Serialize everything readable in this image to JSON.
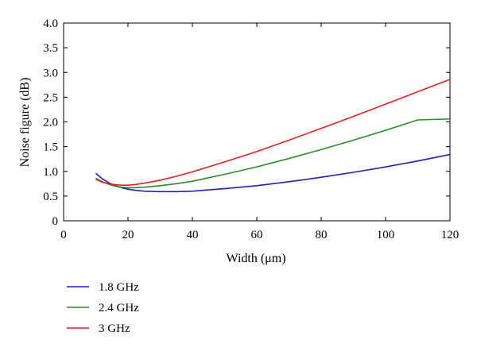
{
  "chart_data": {
    "type": "line",
    "xlabel": "Width (μm)",
    "ylabel": "Noise figure (dB)",
    "xlim": [
      0,
      120
    ],
    "ylim": [
      0,
      4.0
    ],
    "xticks": [
      "0",
      "20",
      "40",
      "60",
      "80",
      "100",
      "120"
    ],
    "yticks": [
      "0",
      "0.5",
      "1.0",
      "1.5",
      "2.0",
      "2.5",
      "3.0",
      "3.5",
      "4.0"
    ],
    "grid": false,
    "legend_position": "below",
    "x": [
      10,
      12,
      14,
      16,
      18,
      20,
      22,
      25,
      30,
      35,
      40,
      50,
      60,
      70,
      80,
      90,
      100,
      110,
      120
    ],
    "series": [
      {
        "name": "1.8 GHz",
        "color": "#1f1fbf",
        "values": [
          0.96,
          0.85,
          0.77,
          0.71,
          0.67,
          0.64,
          0.62,
          0.6,
          0.59,
          0.59,
          0.6,
          0.65,
          0.71,
          0.79,
          0.88,
          0.98,
          1.09,
          1.21,
          1.34
        ]
      },
      {
        "name": "2.4 GHz",
        "color": "#2a8a2a",
        "values": [
          0.86,
          0.79,
          0.74,
          0.7,
          0.68,
          0.67,
          0.67,
          0.68,
          0.71,
          0.75,
          0.8,
          0.94,
          1.09,
          1.26,
          1.44,
          1.63,
          1.83,
          2.04,
          2.06
        ]
      },
      {
        "name": "3 GHz",
        "color": "#e02020",
        "values": [
          0.84,
          0.78,
          0.75,
          0.73,
          0.72,
          0.72,
          0.73,
          0.76,
          0.82,
          0.9,
          0.99,
          1.19,
          1.4,
          1.63,
          1.87,
          2.11,
          2.36,
          2.61,
          2.86
        ]
      }
    ]
  }
}
